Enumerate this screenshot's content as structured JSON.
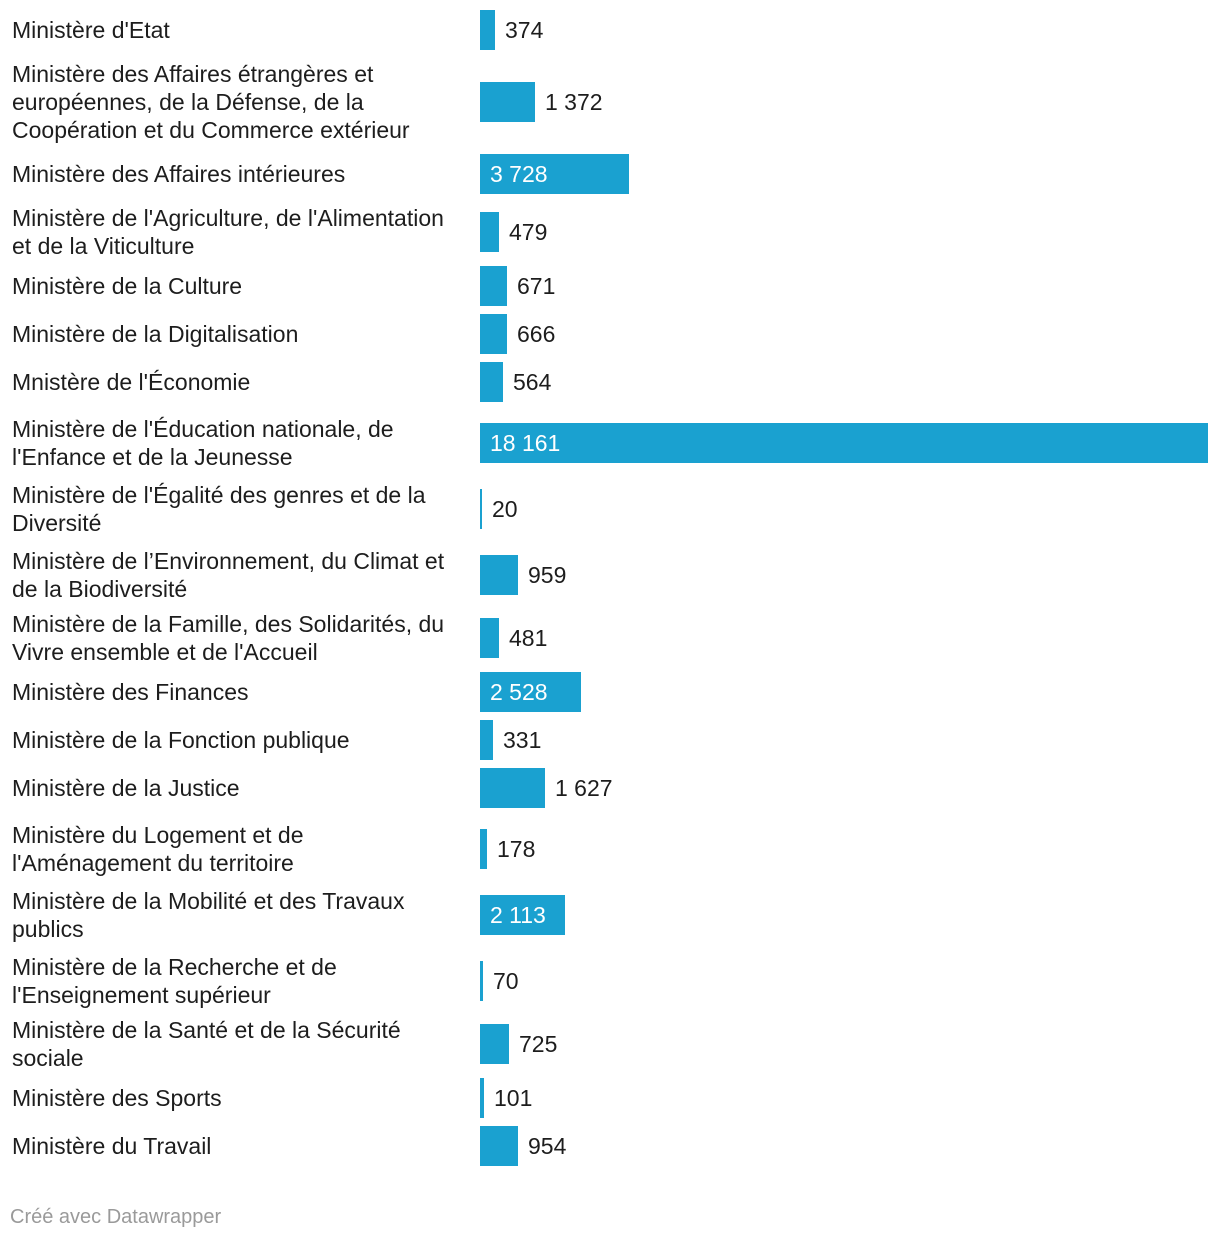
{
  "chart_data": {
    "type": "bar",
    "orientation": "horizontal",
    "title": "",
    "xlabel": "",
    "ylabel": "",
    "xlim": [
      0,
      18161
    ],
    "bar_color": "#1aa1d0",
    "categories": [
      "Ministère d'Etat",
      "Ministère des Affaires étrangères et européennes, de la Défense, de la Coopération et du Commerce extérieur",
      "Ministère des Affaires intérieures",
      "Ministère de l'Agriculture, de l'Alimentation et de la Viticulture",
      "Ministère de la Culture",
      "Ministère de la Digitalisation",
      "Mnistère de l'Économie",
      "Ministère de l'Éducation nationale, de l'Enfance et de la Jeunesse",
      "Ministère de l'Égalité des genres et de la Diversité",
      "Ministère de l’Environnement, du Climat et de la Biodiversité",
      "Ministère de la Famille, des Solidarités, du Vivre ensemble et de l'Accueil",
      "Ministère des Finances",
      "Ministère de la Fonction publique",
      "Ministère de la Justice",
      "Ministère du Logement et de l'Aménagement du territoire",
      "Ministère de la Mobilité et des Travaux publics",
      "Ministère de la Recherche et de l'Enseignement supérieur",
      "Ministère de la Santé et de la Sécurité sociale",
      "Ministère des Sports",
      "Ministère du Travail"
    ],
    "values": [
      374,
      1372,
      3728,
      479,
      671,
      666,
      564,
      18161,
      20,
      959,
      481,
      2528,
      331,
      1627,
      178,
      2113,
      70,
      725,
      101,
      954
    ],
    "value_labels": [
      "374",
      "1 372",
      "3 728",
      "479",
      "671",
      "666",
      "564",
      "18 161",
      "20",
      "959",
      "481",
      "2 528",
      "331",
      "1 627",
      "178",
      "2 113",
      "70",
      "725",
      "101",
      "954"
    ]
  },
  "footer": {
    "credit": "Créé avec Datawrapper"
  }
}
